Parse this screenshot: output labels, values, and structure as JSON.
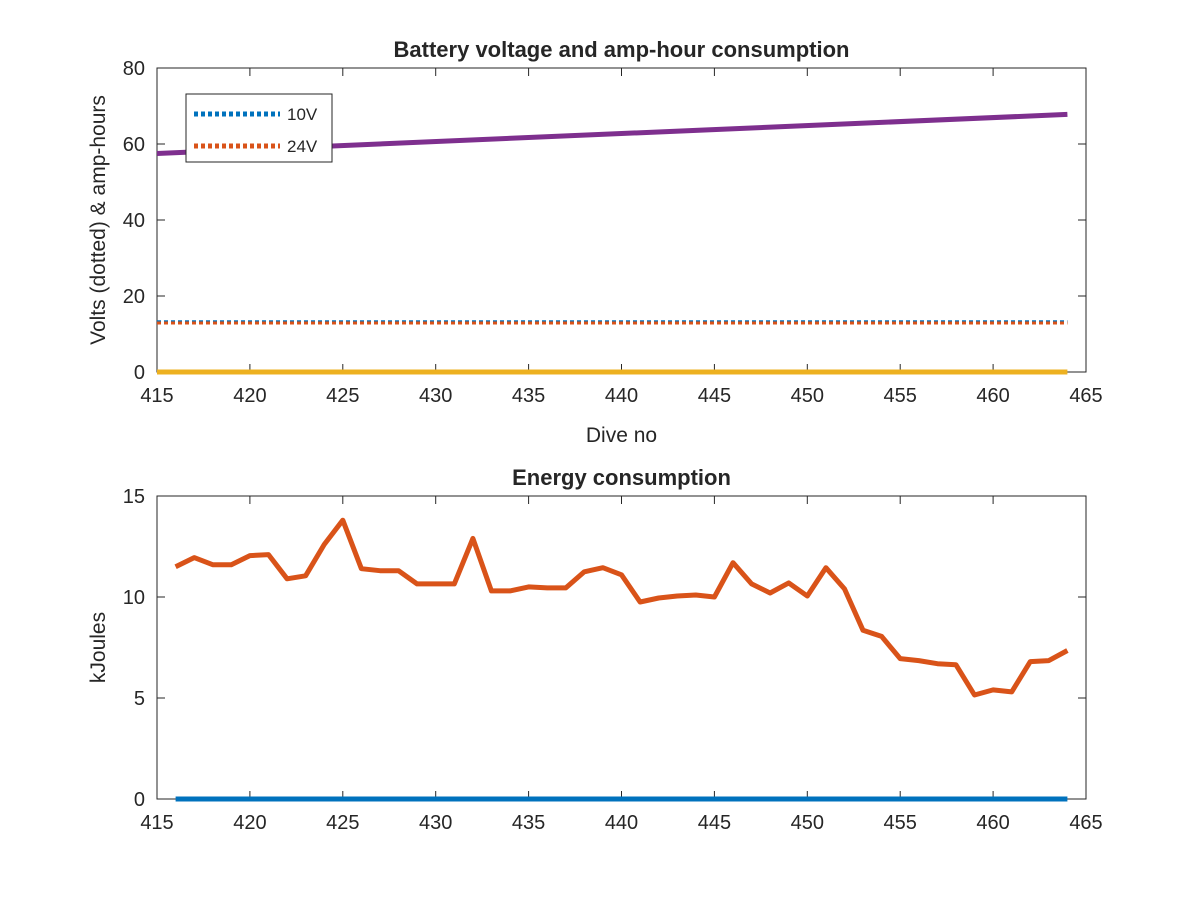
{
  "chart_data": [
    {
      "type": "line",
      "title": "Battery voltage and amp-hour consumption",
      "xlabel": "Dive no",
      "ylabel": "Volts (dotted) & amp-hours",
      "xlim": [
        415,
        465
      ],
      "ylim": [
        0,
        80
      ],
      "xticks": [
        "415",
        "420",
        "425",
        "430",
        "435",
        "440",
        "445",
        "450",
        "455",
        "460",
        "465"
      ],
      "yticks": [
        "0",
        "20",
        "40",
        "60",
        "80"
      ],
      "legend_position": "top-left",
      "series": [
        {
          "name": "10V",
          "style": "dotted",
          "color": "#0072BD",
          "x": [
            415,
            464
          ],
          "y": [
            13.2,
            13.2
          ]
        },
        {
          "name": "24V",
          "style": "dotted",
          "color": "#D95319",
          "x": [
            415,
            464
          ],
          "y": [
            12.9,
            12.9
          ]
        },
        {
          "style": "solid",
          "color": "#7E2F8E",
          "x": [
            415,
            464
          ],
          "y": [
            57.5,
            67.8
          ]
        },
        {
          "style": "solid",
          "color": "#EDB120",
          "x": [
            415,
            464
          ],
          "y": [
            0,
            0
          ]
        }
      ]
    },
    {
      "type": "line",
      "title": "Energy consumption",
      "xlabel": "",
      "ylabel": "kJoules",
      "xlim": [
        415,
        465
      ],
      "ylim": [
        0,
        15
      ],
      "xticks": [
        "415",
        "420",
        "425",
        "430",
        "435",
        "440",
        "445",
        "450",
        "455",
        "460",
        "465"
      ],
      "yticks": [
        "0",
        "5",
        "10",
        "15"
      ],
      "series": [
        {
          "style": "solid",
          "color": "#D95319",
          "x": [
            416,
            417,
            418,
            419,
            420,
            421,
            422,
            423,
            424,
            425,
            426,
            427,
            428,
            429,
            430,
            431,
            432,
            433,
            434,
            435,
            436,
            437,
            438,
            439,
            440,
            441,
            442,
            443,
            444,
            445,
            446,
            447,
            448,
            449,
            450,
            451,
            452,
            453,
            454,
            455,
            456,
            457,
            458,
            459,
            460,
            461,
            462,
            463,
            464
          ],
          "y": [
            11.5,
            11.95,
            11.6,
            11.6,
            12.05,
            12.1,
            10.9,
            11.05,
            12.6,
            13.8,
            11.4,
            11.3,
            11.3,
            10.65,
            10.65,
            10.65,
            12.9,
            10.3,
            10.3,
            10.5,
            10.45,
            10.45,
            11.25,
            11.45,
            11.1,
            9.75,
            9.95,
            10.05,
            10.1,
            10.0,
            11.7,
            10.65,
            10.2,
            10.7,
            10.05,
            11.45,
            10.4,
            8.35,
            8.05,
            6.95,
            6.85,
            6.7,
            6.65,
            5.15,
            5.4,
            5.3,
            6.8,
            6.85,
            7.35
          ]
        },
        {
          "style": "solid",
          "color": "#0072BD",
          "x": [
            416,
            464
          ],
          "y": [
            0,
            0
          ]
        }
      ]
    }
  ]
}
